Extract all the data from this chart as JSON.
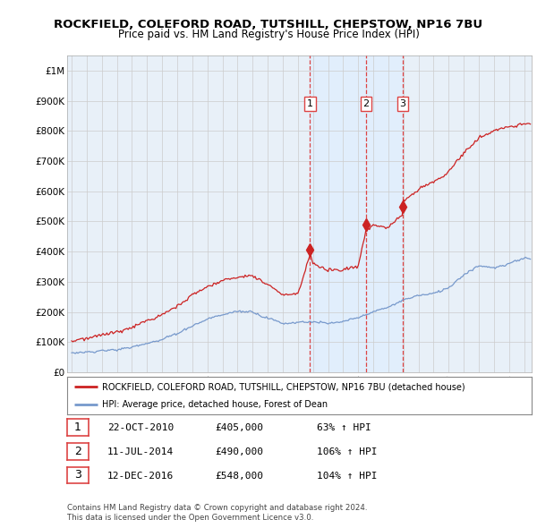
{
  "title": "ROCKFIELD, COLEFORD ROAD, TUTSHILL, CHEPSTOW, NP16 7BU",
  "subtitle": "Price paid vs. HM Land Registry's House Price Index (HPI)",
  "legend_label_red": "ROCKFIELD, COLEFORD ROAD, TUTSHILL, CHEPSTOW, NP16 7BU (detached house)",
  "legend_label_blue": "HPI: Average price, detached house, Forest of Dean",
  "footer_line1": "Contains HM Land Registry data © Crown copyright and database right 2024.",
  "footer_line2": "This data is licensed under the Open Government Licence v3.0.",
  "transactions": [
    {
      "num": 1,
      "date": "22-OCT-2010",
      "price": 405000,
      "pct": "63%",
      "dir": "↑"
    },
    {
      "num": 2,
      "date": "11-JUL-2014",
      "price": 490000,
      "pct": "106%",
      "dir": "↑"
    },
    {
      "num": 3,
      "date": "12-DEC-2016",
      "price": 548000,
      "pct": "104%",
      "dir": "↑"
    }
  ],
  "vline_dates": [
    2010.81,
    2014.52,
    2016.95
  ],
  "vline_color": "#dd4444",
  "shade_color": "#ddeeff",
  "marker_dates": [
    2010.81,
    2014.52,
    2016.95
  ],
  "marker_prices": [
    405000,
    490000,
    548000
  ],
  "red_color": "#cc2222",
  "blue_color": "#7799cc",
  "ylim": [
    0,
    1050000
  ],
  "xlim": [
    1994.7,
    2025.5
  ],
  "background_color": "#ffffff",
  "plot_bg": "#e8f0f8",
  "grid_color": "#cccccc",
  "title_fontsize": 9.5,
  "subtitle_fontsize": 8.5
}
